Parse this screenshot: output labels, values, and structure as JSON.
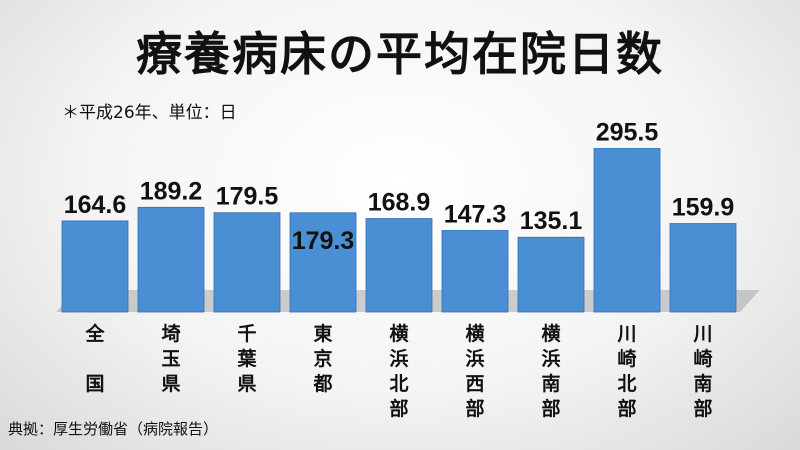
{
  "title": "療養病床の平均在院日数",
  "subtitle": "＊平成26年、単位：日",
  "source": "典拠：厚生労働省（病院報告）",
  "colors": {
    "bar": "#4a8fd4",
    "bar_edge": "#2f6fb3",
    "shadow": "#a8a8a8"
  },
  "chart_data": {
    "type": "bar",
    "title": "療養病床の平均在院日数",
    "subtitle": "＊平成26年、単位：日",
    "categories": [
      "全国",
      "埼玉県",
      "千葉県",
      "東京都",
      "横浜北部",
      "横浜西部",
      "横浜南部",
      "川崎北部",
      "川崎南部"
    ],
    "category_lines": [
      [
        "全",
        "",
        "国"
      ],
      [
        "埼",
        "玉",
        "県"
      ],
      [
        "千",
        "葉",
        "県"
      ],
      [
        "東",
        "京",
        "都"
      ],
      [
        "横",
        "浜",
        "北",
        "部"
      ],
      [
        "横",
        "浜",
        "西",
        "部"
      ],
      [
        "横",
        "浜",
        "南",
        "部"
      ],
      [
        "川",
        "崎",
        "北",
        "部"
      ],
      [
        "川",
        "崎",
        "南",
        "部"
      ]
    ],
    "values": [
      164.6,
      189.2,
      179.5,
      179.3,
      168.9,
      147.3,
      135.1,
      295.5,
      159.9
    ],
    "value_labels": [
      "164.6",
      "189.2",
      "179.5",
      "179.3",
      "168.9",
      "147.3",
      "135.1",
      "295.5",
      "159.9"
    ],
    "ylim": [
      0,
      370
    ],
    "grid": false,
    "legend": "none"
  }
}
